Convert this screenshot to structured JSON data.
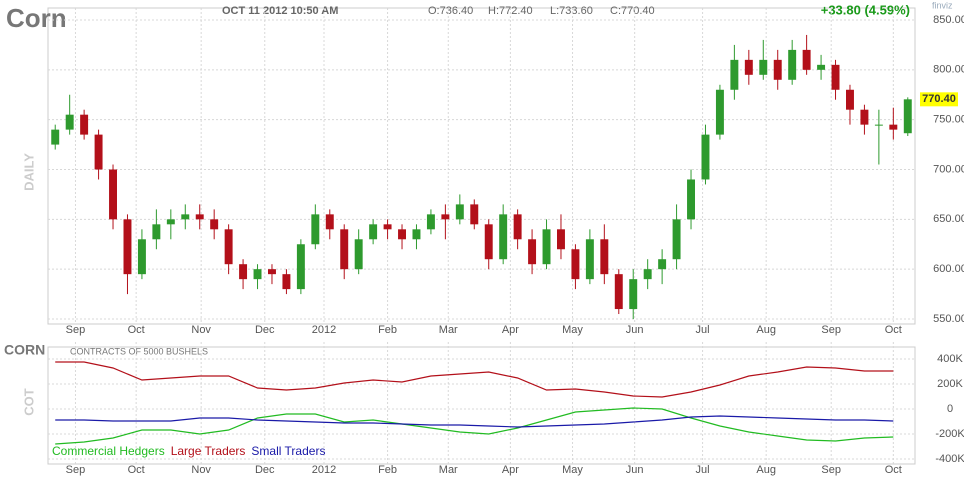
{
  "chart_data": [
    {
      "type": "candlestick",
      "title": "Corn",
      "date": "OCT 11 2012 10:50 AM",
      "open_label": "O:736.40",
      "high_label": "H:772.40",
      "low_label": "L:733.60",
      "close_label": "C:770.40",
      "change": "+33.80 (4.59%)",
      "brand": "finviz",
      "y_label": "DAILY",
      "last_price_label": "770.40",
      "up_color": "#2e9a2e",
      "down_color": "#b3101a",
      "open": [
        725,
        740,
        755,
        735,
        700,
        650,
        595,
        630,
        645,
        650,
        655,
        650,
        640,
        605,
        590,
        600,
        595,
        580,
        625,
        655,
        640,
        600,
        630,
        645,
        640,
        630,
        640,
        655,
        650,
        665,
        645,
        610,
        655,
        630,
        605,
        640,
        620,
        590,
        630,
        595,
        560,
        590,
        600,
        610,
        650,
        690,
        735,
        780,
        810,
        795,
        810,
        790,
        820,
        800,
        805,
        780,
        760,
        745,
        745,
        736.4
      ],
      "high": [
        745,
        775,
        760,
        740,
        705,
        655,
        640,
        660,
        660,
        665,
        665,
        660,
        645,
        610,
        605,
        605,
        600,
        630,
        665,
        660,
        645,
        640,
        650,
        650,
        645,
        645,
        660,
        665,
        675,
        670,
        650,
        665,
        660,
        640,
        650,
        655,
        625,
        640,
        645,
        600,
        600,
        610,
        620,
        665,
        700,
        745,
        785,
        825,
        820,
        830,
        820,
        830,
        835,
        815,
        810,
        785,
        765,
        760,
        762,
        772.4
      ],
      "low": [
        720,
        735,
        730,
        690,
        640,
        575,
        590,
        620,
        630,
        640,
        640,
        630,
        595,
        580,
        580,
        585,
        575,
        575,
        620,
        630,
        590,
        595,
        625,
        630,
        620,
        620,
        635,
        630,
        645,
        640,
        600,
        605,
        620,
        595,
        600,
        610,
        580,
        585,
        585,
        555,
        550,
        580,
        585,
        600,
        640,
        685,
        730,
        770,
        785,
        790,
        780,
        785,
        795,
        790,
        770,
        745,
        735,
        705,
        730,
        733.6
      ],
      "close": [
        740,
        755,
        735,
        700,
        650,
        595,
        630,
        645,
        650,
        655,
        650,
        640,
        605,
        590,
        600,
        595,
        580,
        625,
        655,
        640,
        600,
        630,
        645,
        640,
        630,
        640,
        655,
        650,
        665,
        645,
        610,
        655,
        630,
        605,
        640,
        620,
        590,
        630,
        595,
        560,
        590,
        600,
        610,
        650,
        690,
        735,
        780,
        810,
        795,
        810,
        790,
        820,
        800,
        805,
        780,
        760,
        745,
        745,
        740,
        770.4
      ],
      "xlim": [
        -0.5,
        59.5
      ],
      "xticks": [
        {
          "value": 1.4,
          "label": "Sep"
        },
        {
          "value": 5.6,
          "label": "Oct"
        },
        {
          "value": 10.1,
          "label": "Nov"
        },
        {
          "value": 14.5,
          "label": "Dec"
        },
        {
          "value": 18.6,
          "label": "2012"
        },
        {
          "value": 23.0,
          "label": "Feb"
        },
        {
          "value": 27.2,
          "label": "Mar"
        },
        {
          "value": 31.5,
          "label": "Apr"
        },
        {
          "value": 35.8,
          "label": "May"
        },
        {
          "value": 40.1,
          "label": "Jun"
        },
        {
          "value": 44.8,
          "label": "Jul"
        },
        {
          "value": 49.2,
          "label": "Aug"
        },
        {
          "value": 53.7,
          "label": "Sep"
        },
        {
          "value": 58.0,
          "label": "Oct"
        }
      ],
      "ylim": [
        545,
        855
      ],
      "yticks": [
        {
          "value": 550,
          "label": "550.00"
        },
        {
          "value": 600,
          "label": "600.00"
        },
        {
          "value": 650,
          "label": "650.00"
        },
        {
          "value": 700,
          "label": "700.00"
        },
        {
          "value": 750,
          "label": "750.00"
        },
        {
          "value": 800,
          "label": "800.00"
        },
        {
          "value": 850,
          "label": "850.00"
        }
      ],
      "grid": true
    },
    {
      "type": "line",
      "title": "CORN",
      "subtitle": "CONTRACTS OF 5000 BUSHELS",
      "y_label": "COT",
      "x": [
        0,
        2,
        4,
        6,
        8,
        10,
        12,
        14,
        16,
        18,
        20,
        22,
        24,
        26,
        28,
        30,
        32,
        34,
        36,
        38,
        40,
        42,
        44,
        46,
        48,
        50,
        52,
        54,
        56,
        58
      ],
      "series": [
        {
          "name": "Commercial Hedgers",
          "color": "#22bb22",
          "values": [
            -280000,
            -264000,
            -232000,
            -168000,
            -168000,
            -200000,
            -168000,
            -72000,
            -40000,
            -40000,
            -104000,
            -88000,
            -120000,
            -152000,
            -184000,
            -200000,
            -152000,
            -88000,
            -24000,
            -8000,
            8000,
            0,
            -72000,
            -136000,
            -184000,
            -216000,
            -248000,
            -256000,
            -232000,
            -224000
          ]
        },
        {
          "name": "Large Traders",
          "color": "#b3101a",
          "values": [
            376000,
            376000,
            328000,
            232000,
            248000,
            264000,
            264000,
            168000,
            152000,
            168000,
            208000,
            232000,
            216000,
            264000,
            280000,
            296000,
            248000,
            152000,
            160000,
            136000,
            104000,
            96000,
            136000,
            192000,
            264000,
            296000,
            336000,
            328000,
            304000,
            304000
          ]
        },
        {
          "name": "Small Traders",
          "color": "#1a1aa8",
          "values": [
            -88000,
            -88000,
            -96000,
            -96000,
            -96000,
            -72000,
            -72000,
            -88000,
            -96000,
            -104000,
            -112000,
            -112000,
            -120000,
            -128000,
            -128000,
            -136000,
            -144000,
            -136000,
            -128000,
            -120000,
            -104000,
            -88000,
            -64000,
            -56000,
            -64000,
            -72000,
            -80000,
            -88000,
            -88000,
            -96000
          ]
        }
      ],
      "xlim": [
        -0.5,
        59.5
      ],
      "xticks": [
        {
          "value": 1.4,
          "label": "Sep"
        },
        {
          "value": 5.6,
          "label": "Oct"
        },
        {
          "value": 10.1,
          "label": "Nov"
        },
        {
          "value": 14.5,
          "label": "Dec"
        },
        {
          "value": 18.6,
          "label": "2012"
        },
        {
          "value": 23.0,
          "label": "Feb"
        },
        {
          "value": 27.2,
          "label": "Mar"
        },
        {
          "value": 31.5,
          "label": "Apr"
        },
        {
          "value": 35.8,
          "label": "May"
        },
        {
          "value": 40.1,
          "label": "Jun"
        },
        {
          "value": 44.8,
          "label": "Jul"
        },
        {
          "value": 49.2,
          "label": "Aug"
        },
        {
          "value": 53.7,
          "label": "Sep"
        },
        {
          "value": 58.0,
          "label": "Oct"
        }
      ],
      "ylim": [
        -440000,
        480000
      ],
      "yticks": [
        {
          "value": 400000,
          "label": "400K"
        },
        {
          "value": 200000,
          "label": "200K"
        },
        0,
        {
          "value": -200000,
          "label": "-200K"
        },
        {
          "value": -400000,
          "label": "-400K"
        }
      ],
      "grid": true
    }
  ]
}
